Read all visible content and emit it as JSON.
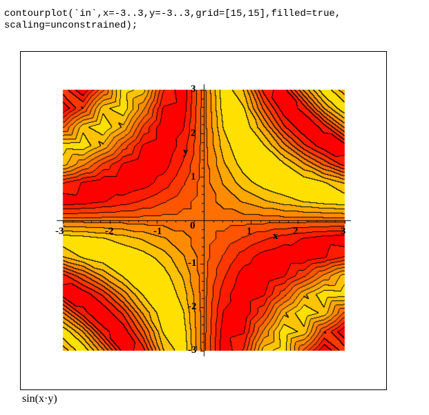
{
  "command": {
    "line1": "contourplot(`in`,x=-3..3,y=-3..3,grid=[15,15],filled=true,",
    "line2": "scaling=unconstrained);"
  },
  "caption": "sin(x·y)",
  "chart_data": {
    "type": "contour",
    "function": "sin(x·y)",
    "filled": true,
    "grid": [
      15,
      15
    ],
    "xlim": [
      -3,
      3
    ],
    "ylim": [
      -3,
      3
    ],
    "xlabel": "x",
    "ylabel": "y",
    "x_ticks": [
      "-3",
      "-2",
      "-1",
      "0",
      "1",
      "2",
      "3"
    ],
    "y_ticks": [
      "3",
      "2",
      "1",
      "-1",
      "-2",
      "-3"
    ],
    "contour_count": 8,
    "color_low": "#ff0000",
    "color_high": "#ffe000",
    "contour_line_color": "#000000"
  }
}
